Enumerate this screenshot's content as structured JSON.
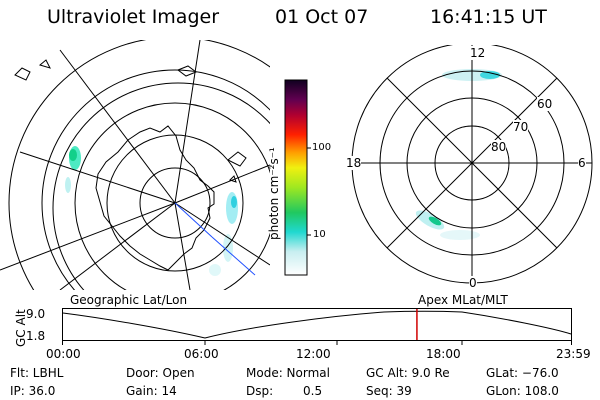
{
  "header": {
    "instrument": "Ultraviolet Imager",
    "date": "01 Oct 07",
    "time": "16:41:15 UT"
  },
  "colorbar": {
    "unit_label": "photon cm⁻²s⁻¹",
    "ticks": [
      "100",
      "10"
    ]
  },
  "polar_plot": {
    "mlt_labels": {
      "top": "12",
      "right": "6",
      "bottom": "0",
      "left": "18"
    },
    "lat_labels": [
      "60",
      "70",
      "80"
    ]
  },
  "timeline": {
    "axis_label": "GC Alt",
    "y_ticks": [
      "9.0",
      "1.8"
    ],
    "left_caption": "Geographic Lat/Lon",
    "right_caption": "Apex MLat/MLT",
    "x_ticks": [
      "00:00",
      "06:00",
      "12:00",
      "18:00",
      "23:59"
    ],
    "current_time_fraction": 0.6967,
    "marker_color": "#d00000"
  },
  "status": {
    "filter": "Flt: LBHL",
    "door": "Door: Open",
    "mode": "Mode: Normal",
    "gc_alt": "GC Alt: 9.0 Re",
    "glat": "GLat: −76.0",
    "ip": "IP: 36.0",
    "gain": "Gain: 14",
    "dsp_label": "Dsp:",
    "dsp_value": "0.5",
    "seq": "Seq: 39",
    "glon": "GLon: 108.0"
  }
}
